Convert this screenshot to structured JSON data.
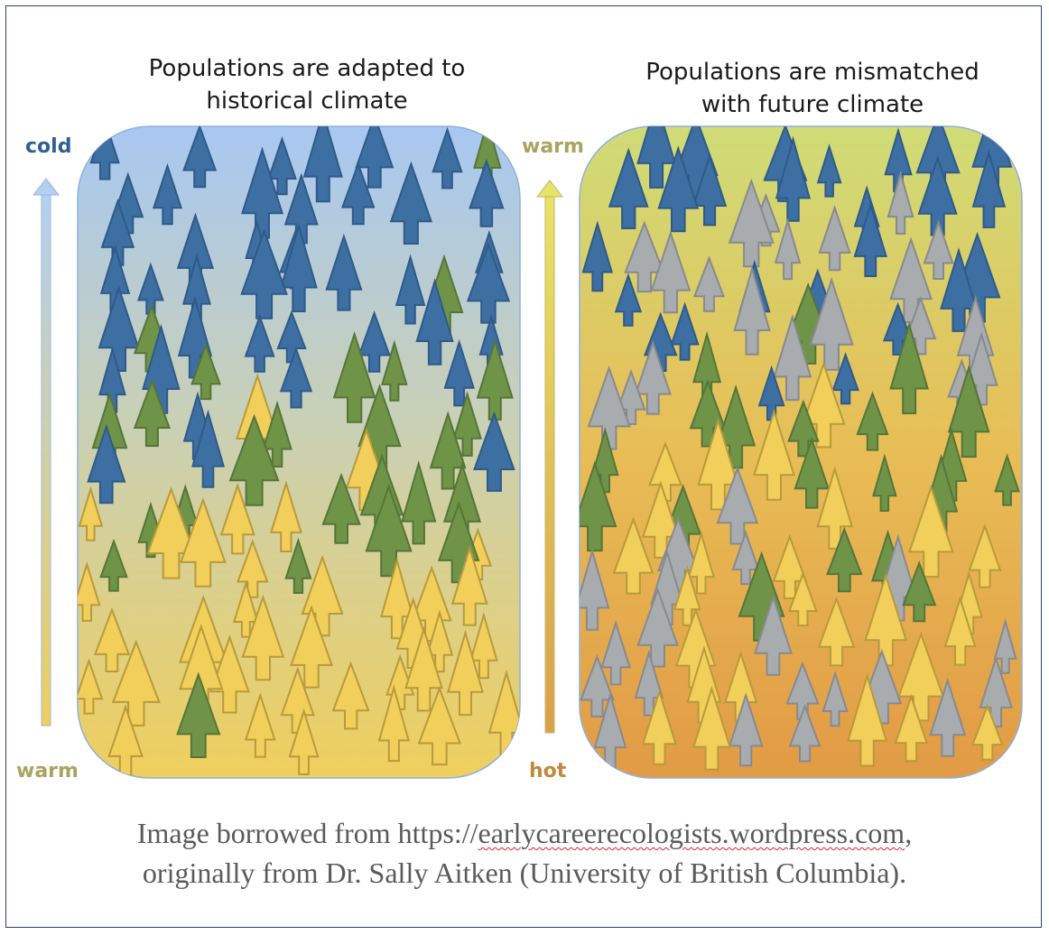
{
  "left_panel": {
    "title_line1": "Populations are adapted to",
    "title_line2": "historical climate",
    "top_label": "cold",
    "bottom_label": "warm"
  },
  "right_panel": {
    "title_line1": "Populations are mismatched",
    "title_line2": "with future climate",
    "top_label": "warm",
    "bottom_label": "hot"
  },
  "caption": {
    "line1_prefix": "Image borrowed from https://",
    "line1_link": "earlycareerecologists.wordpress.com",
    "line1_suffix": ",",
    "line2": "originally from Dr. Sally Aitken (University of British Columbia)."
  },
  "colors": {
    "cold_blue": "#3d6fa3",
    "adapted_green": "#6f9447",
    "warm_yellow": "#f1cf5a",
    "mismatched_gray": "#a9acaf",
    "left_gradient_top": "#a8c8f2",
    "left_gradient_bottom": "#efcf5d",
    "right_gradient_top": "#cfdc77",
    "right_gradient_bottom": "#e29a45"
  }
}
